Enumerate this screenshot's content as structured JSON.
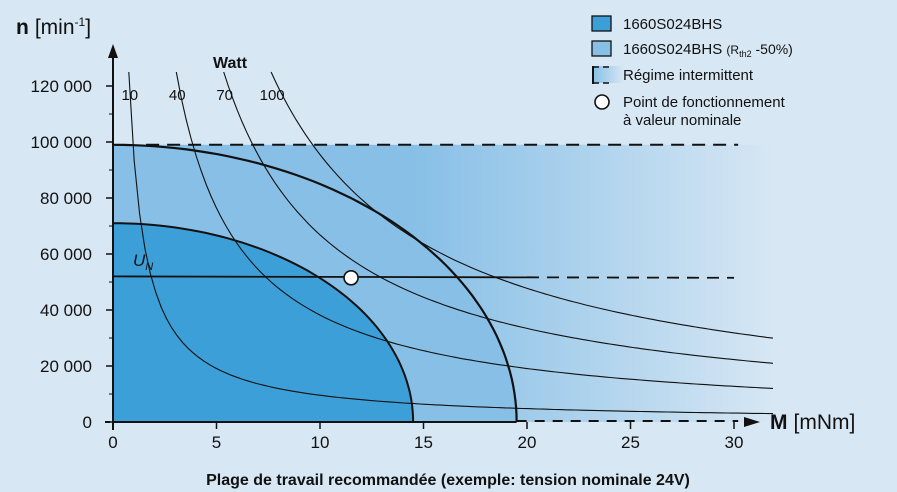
{
  "chart_data": {
    "type": "area",
    "xlabel": {
      "symbol": "M",
      "unit": "[mNm]"
    },
    "ylabel": {
      "symbol": "n",
      "unit_pre": "[min",
      "unit_sup": "-1",
      "unit_post": "]"
    },
    "xlim": [
      0,
      32
    ],
    "ylim": [
      0,
      128000
    ],
    "x_ticks": [
      "0",
      "5",
      "10",
      "15",
      "20",
      "25",
      "30"
    ],
    "x_tick_values": [
      0,
      5,
      10,
      15,
      20,
      25,
      30
    ],
    "y_ticks": [
      "0",
      "20 000",
      "40 000",
      "60 000",
      "80 000",
      "100 000",
      "120 000"
    ],
    "y_tick_values": [
      0,
      20000,
      40000,
      60000,
      80000,
      100000,
      120000
    ],
    "caption": "Plage de travail recommandée (exemple: tension nominale 24V)",
    "power_curves_title": "Watt",
    "power_curves": [
      {
        "label": "10",
        "watts": 10
      },
      {
        "label": "40",
        "watts": 40
      },
      {
        "label": "70",
        "watts": 70
      },
      {
        "label": "100",
        "watts": 100
      }
    ],
    "regions": [
      {
        "name": "1660S024BHS",
        "max_speed": 71000,
        "max_torque": 14.5,
        "color": "#3d9fd8"
      },
      {
        "name": "1660S024BHS (Rth2 -50%)",
        "max_speed": 99000,
        "max_torque": 19.5,
        "color": "#87bfe6"
      }
    ],
    "intermittent": {
      "name": "Régime intermittent",
      "speed_limit": 99000,
      "torque_limit": 32,
      "gradient_from": "#87bfe6",
      "gradient_to": "#d7e7f4"
    },
    "nominal_voltage_line": {
      "label_main": "U",
      "label_sub": "N",
      "speed_at_zero": 52000,
      "speed_at_end": 51500,
      "solid_until": 20,
      "dashed_until": 30
    },
    "operating_point": {
      "name": "Point de fonctionnement à valeur nominale",
      "torque": 11.5,
      "speed": 51500
    },
    "legend": [
      {
        "type": "swatch",
        "color": "#3d9fd8",
        "label_main": "1660S024BHS",
        "label_small": "",
        "label_sub": "",
        "label_rest": ""
      },
      {
        "type": "swatch",
        "color": "#87bfe6",
        "label_main": "1660S024BHS ",
        "label_small": "(R",
        "label_sub": "th2",
        "label_rest": " -50%)"
      },
      {
        "type": "dashed",
        "label_main": "Régime intermittent"
      },
      {
        "type": "circle",
        "label_line1": "Point de fonctionnement",
        "label_line2": "à valeur nominale"
      }
    ]
  }
}
